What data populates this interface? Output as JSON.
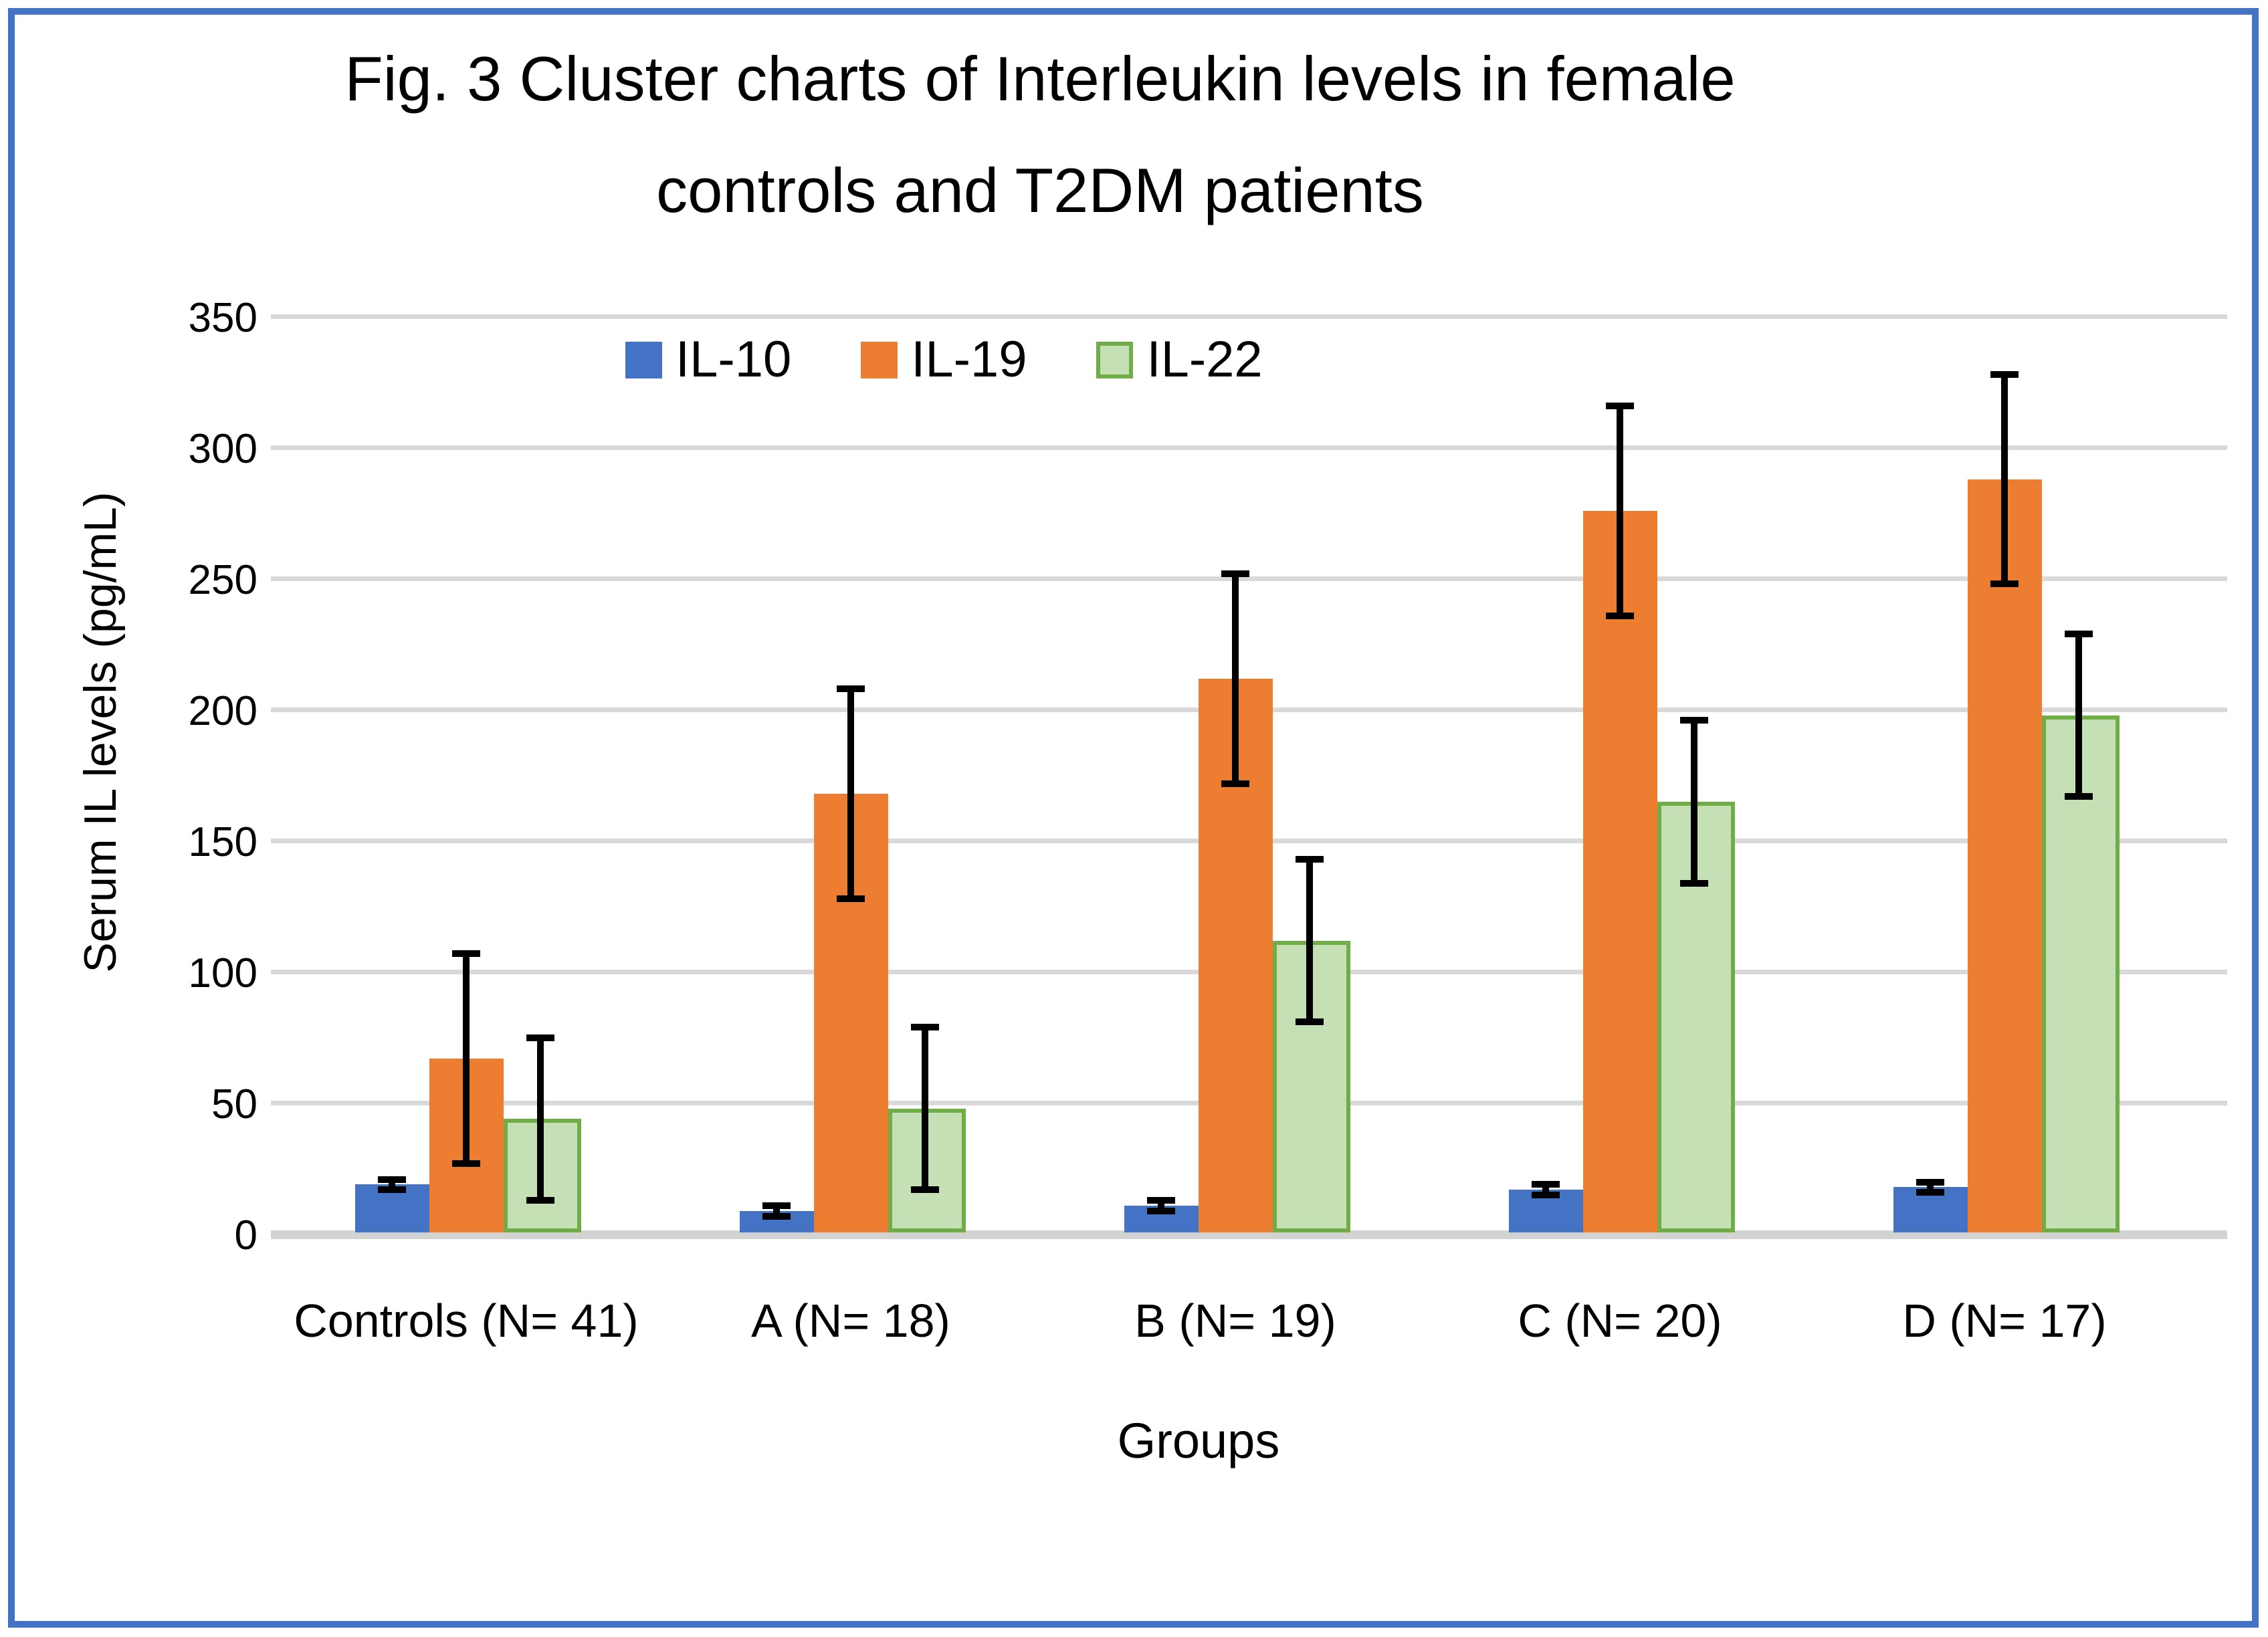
{
  "title": {
    "line1": "Fig. 3 Cluster charts of Interleukin levels in female",
    "line2": "controls and T2DM patients"
  },
  "axes": {
    "y_title": "Serum IL levels (pg/mL)",
    "x_title": "Groups"
  },
  "colors": {
    "frame_border": "#4472C4",
    "gridline": "#D9D9D9",
    "il10": "#4472C4",
    "il19": "#ED7D31",
    "il22_fill": "#C5E0B4",
    "il22_border": "#70AD47",
    "error_bar": "#000000"
  },
  "chart_data": {
    "type": "bar",
    "title": "Fig. 3 Cluster charts of Interleukin levels in female controls and T2DM patients",
    "categories": [
      "Controls (N= 41)",
      "A (N= 18)",
      "B (N= 19)",
      "C (N= 20)",
      "D (N= 17)"
    ],
    "series": [
      {
        "name": "IL-10",
        "color": "#4472C4",
        "values": [
          19,
          9,
          11,
          17,
          18
        ],
        "errors": [
          2,
          2,
          2,
          2,
          2
        ]
      },
      {
        "name": "IL-19",
        "color": "#ED7D31",
        "values": [
          67,
          168,
          212,
          276,
          288
        ],
        "errors": [
          40,
          40,
          40,
          40,
          40
        ]
      },
      {
        "name": "IL-22",
        "color": "#C5E0B4",
        "border_color": "#70AD47",
        "values": [
          44,
          48,
          112,
          165,
          198
        ],
        "errors": [
          31,
          31,
          31,
          31,
          31
        ]
      }
    ],
    "xlabel": "Groups",
    "ylabel": "Serum IL levels (pg/mL)",
    "ylim": [
      0,
      350
    ],
    "y_ticks": [
      0,
      50,
      100,
      150,
      200,
      250,
      300,
      350
    ],
    "grid": true,
    "error_bars": true,
    "legend_position": "top-inside"
  }
}
